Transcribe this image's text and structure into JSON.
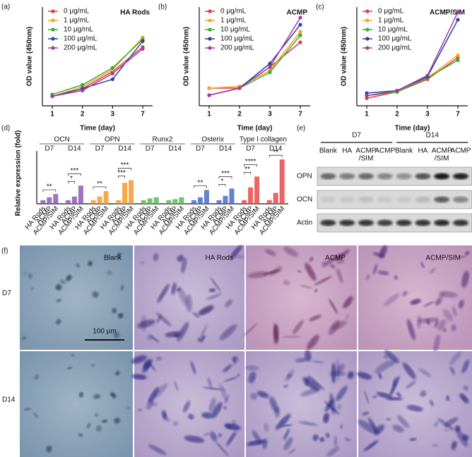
{
  "chart_data": [
    {
      "type": "line",
      "panel_label": "(a)",
      "title": "HA Rods",
      "x_label": "Time (day)",
      "y_label": "OD value (450nm)",
      "categories": [
        "1",
        "2",
        "3",
        "7"
      ],
      "ylim": [
        0.08,
        0.34
      ],
      "series": [
        {
          "name": "0 μg/mL",
          "color": "#e8383d",
          "values": [
            0.105,
            0.125,
            0.17,
            0.235
          ]
        },
        {
          "name": "1 μg/mL",
          "color": "#f5a623",
          "values": [
            0.105,
            0.13,
            0.175,
            0.26
          ]
        },
        {
          "name": "10 μg/mL",
          "color": "#3aaa35",
          "values": [
            0.11,
            0.135,
            0.18,
            0.255
          ]
        },
        {
          "name": "100 μg/mL",
          "color": "#2e3f9e",
          "values": [
            0.105,
            0.125,
            0.15,
            0.25
          ]
        },
        {
          "name": "200 μg/mL",
          "color": "#a23ba6",
          "values": [
            0.105,
            0.12,
            0.165,
            0.23
          ]
        }
      ]
    },
    {
      "type": "line",
      "panel_label": "(b)",
      "title": "ACMP",
      "x_label": "Time (day)",
      "y_label": "OD value (450nm)",
      "categories": [
        "1",
        "2",
        "3",
        "7"
      ],
      "ylim": [
        0.08,
        0.36
      ],
      "series": [
        {
          "name": "0 μg/mL",
          "color": "#e8383d",
          "values": [
            0.13,
            0.13,
            0.19,
            0.26
          ]
        },
        {
          "name": "1 μg/mL",
          "color": "#f5a623",
          "values": [
            0.13,
            0.135,
            0.18,
            0.29
          ]
        },
        {
          "name": "10 μg/mL",
          "color": "#3aaa35",
          "values": [
            0.11,
            0.13,
            0.175,
            0.28
          ]
        },
        {
          "name": "100 μg/mL",
          "color": "#2e3f9e",
          "values": [
            0.11,
            0.13,
            0.2,
            0.31
          ]
        },
        {
          "name": "200 μg/mL",
          "color": "#a23ba6",
          "values": [
            0.11,
            0.13,
            0.19,
            0.33
          ]
        }
      ]
    },
    {
      "type": "line",
      "panel_label": "(c)",
      "title": "ACMP/SIM",
      "x_label": "Time (day)",
      "y_label": "OD value (450nm)",
      "categories": [
        "1",
        "2",
        "3",
        "7"
      ],
      "ylim": [
        0.08,
        0.47
      ],
      "series": [
        {
          "name": "0 μg/mL",
          "color": "#e8383d",
          "values": [
            0.11,
            0.135,
            0.185,
            0.27
          ]
        },
        {
          "name": "1 μg/mL",
          "color": "#f5a623",
          "values": [
            0.12,
            0.135,
            0.19,
            0.28
          ]
        },
        {
          "name": "10 μg/mL",
          "color": "#3aaa35",
          "values": [
            0.12,
            0.135,
            0.19,
            0.26
          ]
        },
        {
          "name": "100 μg/mL",
          "color": "#2e3f9e",
          "values": [
            0.13,
            0.14,
            0.195,
            0.42
          ]
        },
        {
          "name": "200 μg/mL",
          "color": "#a23ba6",
          "values": [
            0.12,
            0.14,
            0.2,
            0.45
          ]
        }
      ]
    },
    {
      "type": "grouped-bar",
      "panel_label": "(d)",
      "y_label": "Relative expression (fold)",
      "categories": [
        "HA Rods",
        "ACMP",
        "ACMP/SIM"
      ],
      "ylim": [
        0,
        13
      ],
      "groups": [
        {
          "name": "OCN",
          "color": "#8e5bb5",
          "subgroups": [
            {
              "name": "D7",
              "values": [
                1.0,
                1.8,
                2.7
              ],
              "significance": [
                "**"
              ]
            },
            {
              "name": "D14",
              "values": [
                1.0,
                2.0,
                5.0
              ],
              "significance": [
                "*",
                "***"
              ]
            }
          ]
        },
        {
          "name": "OPN",
          "color": "#f39a2b",
          "subgroups": [
            {
              "name": "D7",
              "values": [
                1.0,
                2.0,
                3.5
              ],
              "significance": [
                "**"
              ]
            },
            {
              "name": "D14",
              "values": [
                1.0,
                5.8,
                6.5
              ],
              "significance": [
                "***",
                "***"
              ]
            }
          ]
        },
        {
          "name": "Runx2",
          "color": "#5cb85c",
          "subgroups": [
            {
              "name": "D7",
              "values": [
                1.0,
                1.5,
                1.8
              ],
              "significance": []
            },
            {
              "name": "D14",
              "values": [
                1.0,
                1.3,
                1.8
              ],
              "significance": []
            }
          ]
        },
        {
          "name": "Osterix",
          "color": "#4a6cc7",
          "subgroups": [
            {
              "name": "D7",
              "values": [
                1.0,
                1.8,
                3.8
              ],
              "significance": [
                "**"
              ]
            },
            {
              "name": "D14",
              "values": [
                1.0,
                2.2,
                4.2
              ],
              "significance": [
                "*",
                "***"
              ]
            }
          ]
        },
        {
          "name": "Type I collagen",
          "color": "#e84a4a",
          "subgroups": [
            {
              "name": "D7",
              "values": [
                1.0,
                4.5,
                7.5
              ],
              "significance": [
                "**",
                "****"
              ]
            },
            {
              "name": "D14",
              "values": [
                1.0,
                3.0,
                12.2
              ],
              "significance": [
                "**"
              ]
            }
          ]
        }
      ]
    }
  ],
  "blot": {
    "panel_label": "(e)",
    "days": [
      "D7",
      "D14"
    ],
    "lanes": [
      [
        "Blank"
      ],
      [
        "HA"
      ],
      [
        "ACMP",
        "/SIM"
      ],
      [
        "ACMP"
      ]
    ],
    "rows": [
      "OPN",
      "OCN",
      "Actin"
    ]
  },
  "micrographs": {
    "panel_label": "(f)",
    "columns": [
      "Blank",
      "HA Rods",
      "ACMP",
      "ACMP/SIM"
    ],
    "rows": [
      "D7",
      "D14"
    ],
    "scale_bar": "100 μm"
  }
}
